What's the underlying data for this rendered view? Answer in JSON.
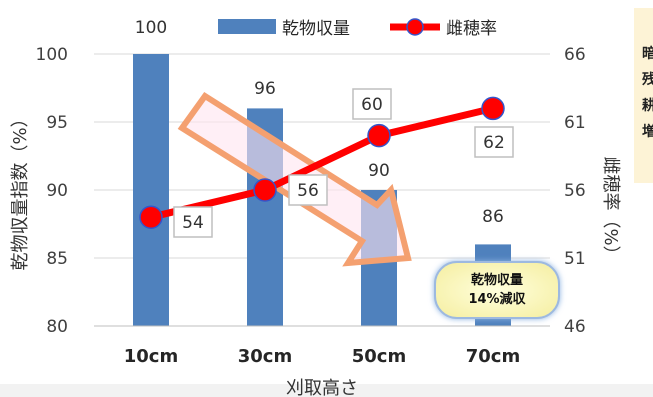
{
  "chart_data": {
    "type": "bar",
    "categories": [
      "10cm",
      "30cm",
      "50cm",
      "70cm"
    ],
    "series": [
      {
        "name": "乾物収量",
        "type": "bar",
        "axis": "left",
        "values": [
          100,
          96,
          90,
          86
        ],
        "color": "#4f81bd"
      },
      {
        "name": "雌穂率",
        "type": "line",
        "axis": "right",
        "values": [
          54,
          56,
          60,
          62
        ],
        "color": "#ff0000",
        "marker_color": "#ff0000",
        "marker_edge": "#3355cc"
      }
    ],
    "xlabel": "刈取高さ",
    "ylabel": "乾物収量指数（%）",
    "ylabel_right": "雌穂率（%）",
    "ylim": [
      80,
      100
    ],
    "ylim_right": [
      46,
      66
    ],
    "yticks": [
      80,
      85,
      90,
      95,
      100
    ],
    "yticks_right": [
      46,
      51,
      56,
      61,
      66
    ],
    "bar_labels": [
      "100",
      "96",
      "90",
      "86"
    ],
    "line_labels": [
      "54",
      "56",
      "60",
      "62"
    ],
    "legend_position": "top",
    "annotation": {
      "lines": [
        "乾物収量",
        "14%減収"
      ]
    },
    "side_note": [
      "暗",
      "残",
      "耕",
      "増"
    ]
  }
}
